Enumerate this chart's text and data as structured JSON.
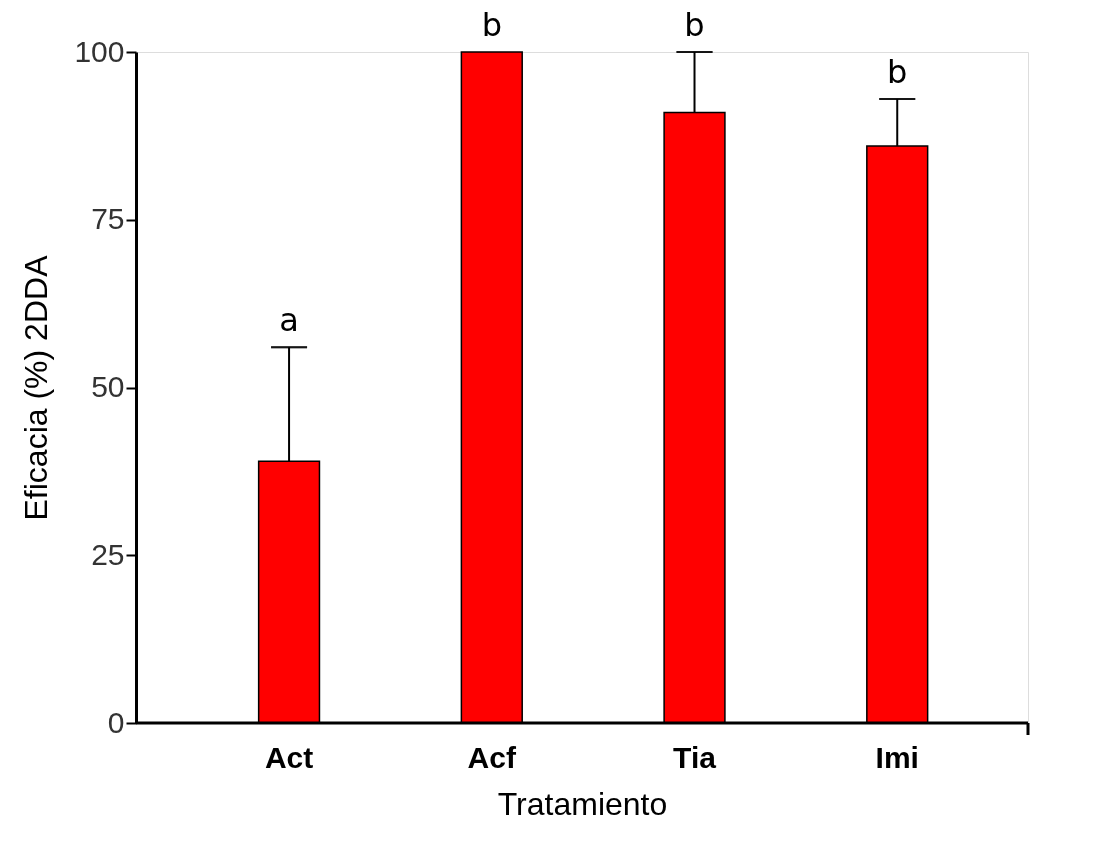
{
  "chart_data": {
    "type": "bar",
    "xlabel": "Tratamiento",
    "ylabel": "Eficacia (%) 2DDA",
    "categories": [
      "Act",
      "Acf",
      "Tia",
      "Imi"
    ],
    "values": [
      39,
      100,
      91,
      86
    ],
    "errors": [
      17,
      null,
      9,
      7
    ],
    "color": "#ff0000",
    "ylim": [
      0,
      100
    ],
    "yticks": [
      0,
      25,
      50,
      75,
      100
    ],
    "grid": false,
    "annotations": [
      {
        "text": "a",
        "x": "Act",
        "y": 56
      },
      {
        "text": "b",
        "x": "Acf",
        "y": 100
      },
      {
        "text": "b",
        "x": "Tia",
        "y": 100
      },
      {
        "text": "b",
        "x": "Imi",
        "y": 93
      }
    ]
  }
}
